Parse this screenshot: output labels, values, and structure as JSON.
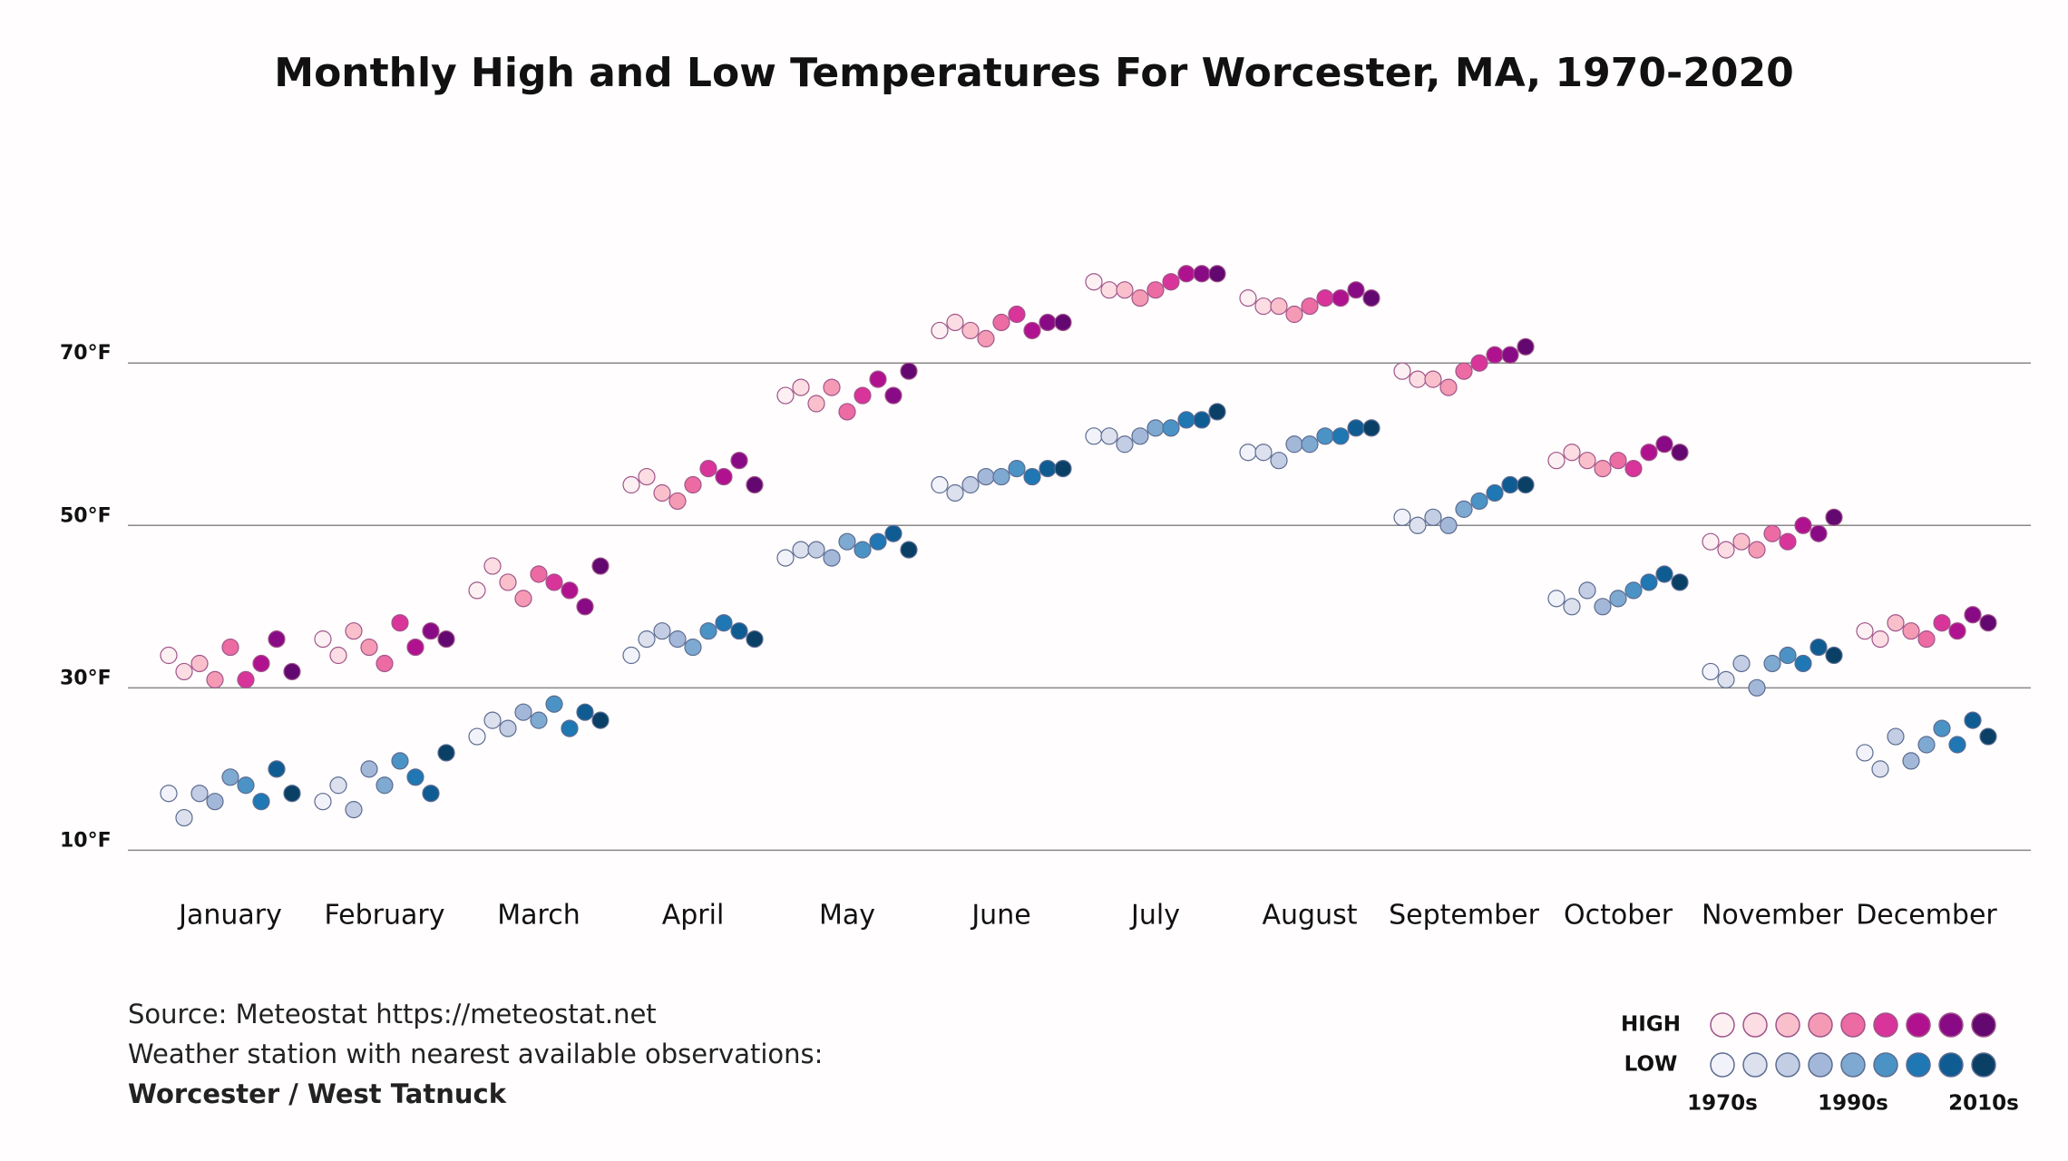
{
  "chart_data": {
    "type": "strip",
    "title": "Monthly High and Low Temperatures For Worcester, MA, 1970-2020",
    "categories": [
      "January",
      "February",
      "March",
      "April",
      "May",
      "June",
      "July",
      "August",
      "September",
      "October",
      "November",
      "December"
    ],
    "ylim": [
      2,
      86
    ],
    "yticks": [
      {
        "value": 10,
        "label": "10°F"
      },
      {
        "value": 30,
        "label": "30°F"
      },
      {
        "value": 50,
        "label": "50°F"
      },
      {
        "value": 70,
        "label": "70°F"
      }
    ],
    "grid": true,
    "bin_labels": [
      "1970s",
      null,
      null,
      null,
      "1990s",
      null,
      null,
      null,
      "2010s"
    ],
    "series": [
      {
        "name": "HIGH",
        "stroke": "#a0558a",
        "colors": [
          "#fdf0f3",
          "#fcdde3",
          "#f9c0cc",
          "#f59ab4",
          "#ec6ba3",
          "#d8349a",
          "#b0128f",
          "#880a85",
          "#620870"
        ],
        "values": [
          [
            34,
            32,
            33,
            31,
            35,
            31,
            33,
            36,
            32
          ],
          [
            36,
            34,
            37,
            35,
            33,
            38,
            35,
            37,
            36
          ],
          [
            42,
            45,
            43,
            41,
            44,
            43,
            42,
            40,
            45
          ],
          [
            55,
            56,
            54,
            53,
            55,
            57,
            56,
            58,
            55
          ],
          [
            66,
            67,
            65,
            67,
            64,
            66,
            68,
            66,
            69
          ],
          [
            74,
            75,
            74,
            73,
            75,
            76,
            74,
            75,
            75
          ],
          [
            80,
            79,
            79,
            78,
            79,
            80,
            81,
            81,
            81
          ],
          [
            78,
            77,
            77,
            76,
            77,
            78,
            78,
            79,
            78
          ],
          [
            69,
            68,
            68,
            67,
            69,
            70,
            71,
            71,
            72
          ],
          [
            58,
            59,
            58,
            57,
            58,
            57,
            59,
            60,
            59
          ],
          [
            48,
            47,
            48,
            47,
            49,
            48,
            50,
            49,
            51
          ],
          [
            37,
            36,
            38,
            37,
            36,
            38,
            37,
            39,
            38
          ]
        ]
      },
      {
        "name": "LOW",
        "stroke": "#5d6c92",
        "colors": [
          "#f2f3fa",
          "#dde1ee",
          "#c3cde3",
          "#a3b8d8",
          "#7ea9d0",
          "#4b93c5",
          "#1f77b3",
          "#0f5c93",
          "#0a4066"
        ],
        "values": [
          [
            17,
            14,
            17,
            16,
            19,
            18,
            16,
            20,
            17
          ],
          [
            16,
            18,
            15,
            20,
            18,
            21,
            19,
            17,
            22
          ],
          [
            24,
            26,
            25,
            27,
            26,
            28,
            25,
            27,
            26
          ],
          [
            34,
            36,
            37,
            36,
            35,
            37,
            38,
            37,
            36
          ],
          [
            46,
            47,
            47,
            46,
            48,
            47,
            48,
            49,
            47
          ],
          [
            55,
            54,
            55,
            56,
            56,
            57,
            56,
            57,
            57
          ],
          [
            61,
            61,
            60,
            61,
            62,
            62,
            63,
            63,
            64
          ],
          [
            59,
            59,
            58,
            60,
            60,
            61,
            61,
            62,
            62
          ],
          [
            51,
            50,
            51,
            50,
            52,
            53,
            54,
            55,
            55
          ],
          [
            41,
            40,
            42,
            40,
            41,
            42,
            43,
            44,
            43
          ],
          [
            32,
            31,
            33,
            30,
            33,
            34,
            33,
            35,
            34
          ],
          [
            22,
            20,
            24,
            21,
            23,
            25,
            23,
            26,
            24
          ]
        ]
      }
    ],
    "source": [
      "Source: Meteostat https://meteostat.net",
      "Weather station with nearest available observations:",
      "Worcester / West Tatnuck"
    ]
  }
}
